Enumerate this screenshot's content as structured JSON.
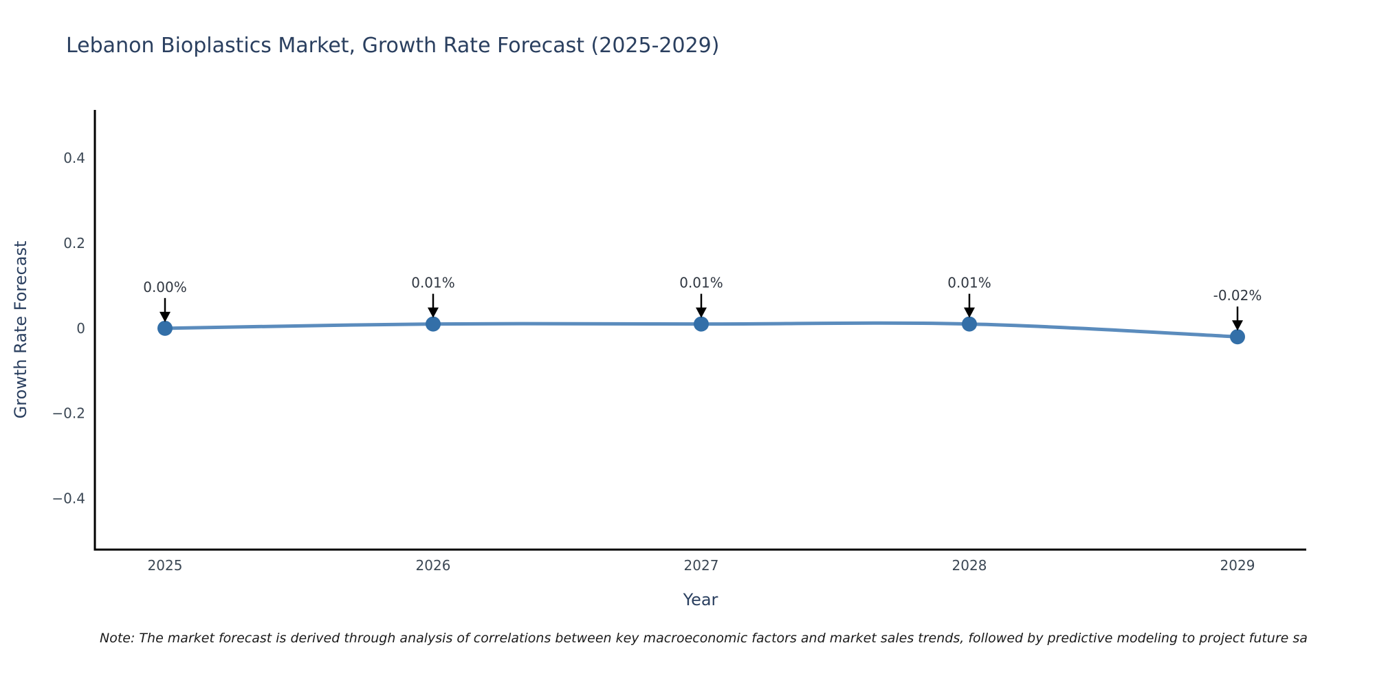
{
  "title": "Lebanon Bioplastics Market, Growth Rate Forecast (2025-2029)",
  "note": "Note: The market forecast is derived through analysis of correlations between key macroeconomic factors and market sales trends, followed by predictive modeling to project future sa",
  "chart_data": {
    "type": "line",
    "title": "Lebanon Bioplastics Market, Growth Rate Forecast (2025-2029)",
    "xlabel": "Year",
    "ylabel": "Growth Rate Forecast",
    "x": [
      2025,
      2026,
      2027,
      2028,
      2029
    ],
    "series": [
      {
        "name": "Growth Rate Forecast",
        "values": [
          0.0,
          0.01,
          0.01,
          0.01,
          -0.02
        ]
      }
    ],
    "point_labels": [
      "0.00%",
      "0.01%",
      "0.01%",
      "0.01%",
      "-0.02%"
    ],
    "xtick_labels": [
      "2025",
      "2026",
      "2027",
      "2028",
      "2029"
    ],
    "yticks": [
      0.4,
      0.2,
      0,
      -0.2,
      -0.4
    ],
    "ytick_labels": [
      "0.4",
      "0.2",
      "0",
      "−0.2",
      "−0.4"
    ],
    "ylim": [
      -0.52,
      0.513
    ],
    "grid": false,
    "legend_position": "none",
    "line_shape": "spline",
    "colors": {
      "line": "#5b8cbd",
      "marker": "#336fa8",
      "axis": "#000000",
      "title_text": "#2a3f5f",
      "axis_label_text": "#2a3f5f",
      "tick_text": "#3b4754",
      "annotation_text": "#2f3640",
      "arrow": "#000000",
      "note_text": "#1a1a1a",
      "background": "#ffffff"
    }
  }
}
